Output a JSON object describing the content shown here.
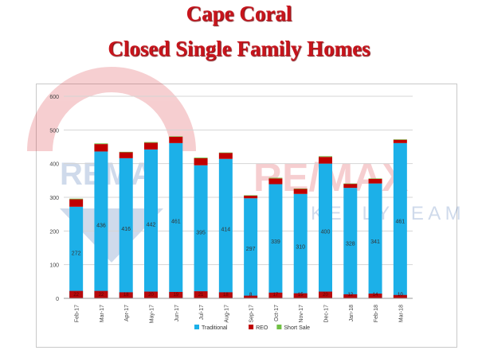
{
  "title_line1": "Cape Coral",
  "title_line2": "Closed Single Family Homes",
  "watermark": {
    "brand": "RE/MAX",
    "team": "KELLY TEAM"
  },
  "chart_data": {
    "type": "bar",
    "stacked": true,
    "categories": [
      "Feb-17",
      "Mar-17",
      "Apr-17",
      "May-17",
      "Jun-17",
      "Jul-17",
      "Aug-17",
      "Sep-17",
      "Oct-17",
      "Nov-17",
      "Dec-17",
      "Jan-18",
      "Feb-18",
      "Mar-18"
    ],
    "series": [
      {
        "name": "Traditional",
        "color": "#1cb0e8",
        "values": [
          272,
          436,
          416,
          442,
          461,
          395,
          414,
          297,
          339,
          310,
          400,
          328,
          341,
          461
        ]
      },
      {
        "name": "REO",
        "color": "#c00000",
        "values": [
          22,
          22,
          18,
          20,
          19,
          21,
          18,
          8,
          17,
          15,
          20,
          12,
          14,
          10
        ]
      },
      {
        "name": "Short Sale",
        "color": "#70c044",
        "values": [
          2,
          2,
          1,
          2,
          1,
          2,
          1,
          1,
          2,
          1,
          2,
          1,
          1,
          1
        ]
      }
    ],
    "ylim": [
      0,
      600
    ],
    "yticks": [
      0,
      100,
      200,
      300,
      400,
      500,
      600
    ],
    "grid": true,
    "legend_position": "bottom"
  }
}
